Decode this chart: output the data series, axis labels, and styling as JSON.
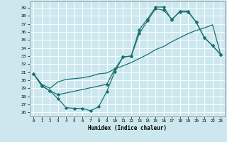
{
  "xlabel": "Humidex (Indice chaleur)",
  "xlim": [
    -0.5,
    23.5
  ],
  "ylim": [
    25.5,
    39.8
  ],
  "yticks": [
    26,
    27,
    28,
    29,
    30,
    31,
    32,
    33,
    34,
    35,
    36,
    37,
    38,
    39
  ],
  "xticks": [
    0,
    1,
    2,
    3,
    4,
    5,
    6,
    7,
    8,
    9,
    10,
    11,
    12,
    13,
    14,
    15,
    16,
    17,
    18,
    19,
    20,
    21,
    22,
    23
  ],
  "bg_color": "#cce8ee",
  "grid_color": "#ffffff",
  "line_color": "#1a7070",
  "curve1_x": [
    0,
    1,
    2,
    3,
    4,
    5,
    6,
    7,
    8,
    9,
    10,
    11,
    12,
    13,
    14,
    15,
    16,
    17,
    18,
    19,
    20,
    21,
    22,
    23
  ],
  "curve1_y": [
    30.8,
    29.3,
    28.7,
    27.7,
    26.6,
    26.5,
    26.5,
    26.2,
    26.7,
    28.6,
    31.1,
    32.9,
    33.0,
    36.3,
    37.6,
    39.1,
    39.1,
    37.5,
    38.6,
    38.6,
    37.2,
    35.3,
    34.3,
    33.2
  ],
  "curve2_x": [
    0,
    1,
    2,
    3,
    4,
    5,
    6,
    7,
    8,
    9,
    10,
    11,
    12,
    13,
    14,
    15,
    16,
    17,
    18,
    19,
    20,
    21,
    22,
    23
  ],
  "curve2_y": [
    30.8,
    29.5,
    29.0,
    29.8,
    30.1,
    30.2,
    30.3,
    30.5,
    30.8,
    30.9,
    31.4,
    31.8,
    32.2,
    32.7,
    33.2,
    33.8,
    34.2,
    34.8,
    35.3,
    35.8,
    36.2,
    36.5,
    36.9,
    33.2
  ],
  "curve3_x": [
    0,
    1,
    2,
    3,
    9,
    10,
    11,
    12,
    13,
    14,
    15,
    16,
    17,
    18,
    19,
    20,
    21,
    22,
    23
  ],
  "curve3_y": [
    30.8,
    29.3,
    28.7,
    28.2,
    29.5,
    31.4,
    32.9,
    33.0,
    35.8,
    37.4,
    38.9,
    38.7,
    37.6,
    38.5,
    38.5,
    37.2,
    35.3,
    34.3,
    33.2
  ]
}
